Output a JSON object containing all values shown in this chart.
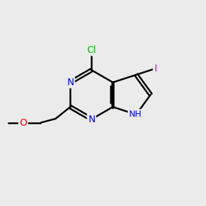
{
  "background_color": "#ebebeb",
  "bond_color": "#000000",
  "bond_width": 1.8,
  "atom_colors": {
    "N": "#0000ff",
    "Cl": "#00bb00",
    "I": "#cc00cc",
    "O": "#ff0000",
    "C": "#000000"
  },
  "font_size": 10,
  "font_size_nh": 9
}
